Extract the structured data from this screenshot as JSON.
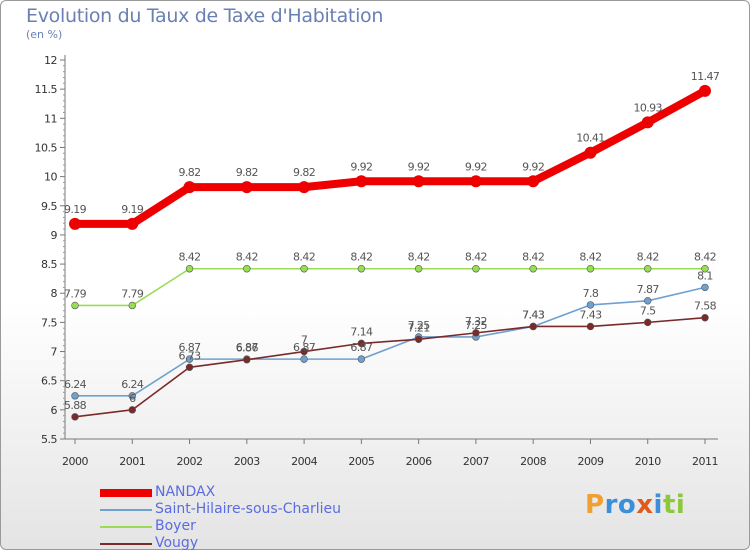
{
  "header": {
    "title": "Evolution du Taux de Taxe d'Habitation",
    "subtitle": "(en %)"
  },
  "logo": {
    "text": "Proxiti"
  },
  "chart_data": {
    "type": "line",
    "x": [
      "2000",
      "2001",
      "2002",
      "2003",
      "2004",
      "2005",
      "2006",
      "2007",
      "2008",
      "2009",
      "2010",
      "2011"
    ],
    "ylim": [
      5.5,
      12
    ],
    "yticks": [
      "5.5",
      "6",
      "6.5",
      "7",
      "7.5",
      "8",
      "8.5",
      "9",
      "9.5",
      "10",
      "10.5",
      "11",
      "11.5",
      "12"
    ],
    "grid": false,
    "legend_position": "bottom-left",
    "series": [
      {
        "name": "NANDAX",
        "color": "#ee0000",
        "values": [
          9.19,
          9.19,
          9.82,
          9.82,
          9.82,
          9.92,
          9.92,
          9.92,
          9.92,
          10.41,
          10.93,
          11.47
        ]
      },
      {
        "name": "Saint-Hilaire-sous-Charlieu",
        "color": "#6ea0d0",
        "values": [
          6.24,
          6.24,
          6.87,
          6.87,
          6.87,
          6.87,
          7.25,
          7.25,
          7.43,
          7.8,
          7.87,
          8.1
        ]
      },
      {
        "name": "Boyer",
        "color": "#99dd55",
        "values": [
          7.79,
          7.79,
          8.42,
          8.42,
          8.42,
          8.42,
          8.42,
          8.42,
          8.42,
          8.42,
          8.42,
          8.42
        ]
      },
      {
        "name": "Vougy",
        "color": "#7a2a2a",
        "values": [
          5.88,
          6.0,
          6.73,
          6.86,
          7.0,
          7.14,
          7.21,
          7.32,
          7.43,
          7.43,
          7.5,
          7.58
        ]
      }
    ],
    "labels": [
      [
        "9.19",
        "9.19",
        "9.82",
        "9.82",
        "9.82",
        "9.92",
        "9.92",
        "9.92",
        "9.92",
        "10.41",
        "10.93",
        "11.47"
      ],
      [
        "6.24",
        "6.24",
        "6.87",
        "6.87",
        "6.87",
        "6.87",
        "7.25",
        "7.25",
        "7.43",
        "7.8",
        "7.87",
        "8.1"
      ],
      [
        "7.79",
        "7.79",
        "8.42",
        "8.42",
        "8.42",
        "8.42",
        "8.42",
        "8.42",
        "8.42",
        "8.42",
        "8.42",
        "8.42"
      ],
      [
        "5.88",
        "6",
        "6.73",
        "6.86",
        "7",
        "7.14",
        "7.21",
        "7.32",
        "7.43",
        "7.43",
        "7.5",
        "7.58"
      ]
    ]
  }
}
